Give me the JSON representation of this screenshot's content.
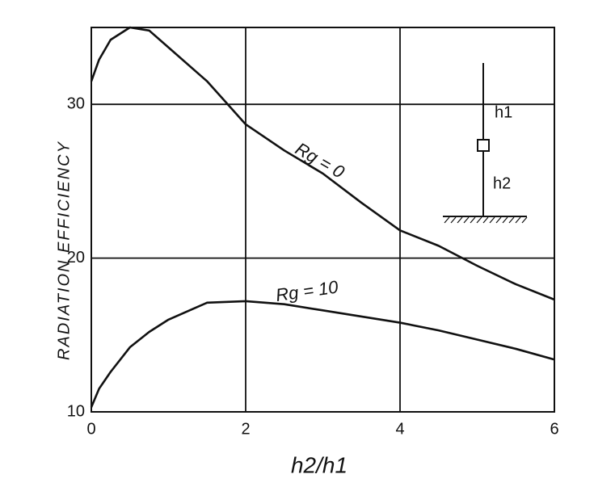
{
  "chart_data": {
    "type": "line",
    "y_label": "RADIATION EFFICIENCY",
    "x_label": "h2/h1",
    "x": [
      0,
      0.1,
      0.25,
      0.5,
      0.75,
      1,
      1.5,
      2,
      2.5,
      3,
      3.5,
      4,
      4.5,
      5,
      5.5,
      6
    ],
    "series": [
      {
        "name": "Rg = 0",
        "color": "#111111",
        "values": [
          31.5,
          32.9,
          34.2,
          35,
          34.8,
          33.7,
          31.5,
          28.7,
          27.0,
          25.5,
          23.6,
          21.8,
          20.8,
          19.5,
          18.3,
          17.3
        ]
      },
      {
        "name": "Rg = 10",
        "color": "#111111",
        "values": [
          10.3,
          11.5,
          12.6,
          14.2,
          15.2,
          16,
          17.1,
          17.2,
          17,
          16.6,
          16.2,
          15.8,
          15.3,
          14.7,
          14.1,
          13.4
        ]
      }
    ],
    "xlim": [
      0,
      6
    ],
    "ylim": [
      10,
      35
    ],
    "xticks": [
      0,
      2,
      4,
      6
    ],
    "yticks": [
      10,
      20,
      30
    ],
    "grid": true,
    "inset_labels": [
      "h1",
      "h2"
    ]
  }
}
